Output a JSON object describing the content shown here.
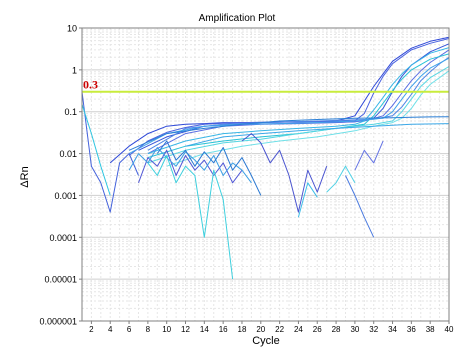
{
  "chart_data": {
    "type": "line",
    "title": "Amplification Plot",
    "xlabel": "Cycle",
    "ylabel": "ΔRn",
    "x_scale": "linear",
    "y_scale": "log",
    "xlim": [
      1,
      40
    ],
    "ylim": [
      1e-06,
      10
    ],
    "grid": true,
    "x_ticks": [
      2,
      4,
      6,
      8,
      10,
      12,
      14,
      16,
      18,
      20,
      22,
      24,
      26,
      28,
      30,
      32,
      34,
      36,
      38,
      40
    ],
    "y_ticks": [
      {
        "value": 1e-06,
        "label": "0.000001"
      },
      {
        "value": 1e-05,
        "label": "0.00001"
      },
      {
        "value": 0.0001,
        "label": "0.0001"
      },
      {
        "value": 0.001,
        "label": "0.001"
      },
      {
        "value": 0.01,
        "label": "0.01"
      },
      {
        "value": 0.1,
        "label": "0.1"
      },
      {
        "value": 1,
        "label": "1"
      },
      {
        "value": 10,
        "label": "10"
      }
    ],
    "threshold": {
      "value": 0.3,
      "label": "0.3",
      "color": "#c8ec3c",
      "label_color": "#cc0000"
    },
    "series": [
      {
        "color": "#2f49d8",
        "x": [
          4,
          6,
          8,
          10,
          12,
          14,
          16,
          18,
          20,
          22,
          24,
          26,
          28,
          30,
          32,
          34,
          36,
          38,
          40
        ],
        "y": [
          0.006,
          0.015,
          0.03,
          0.045,
          0.05,
          0.052,
          0.055,
          0.055,
          0.055,
          0.056,
          0.057,
          0.058,
          0.06,
          0.08,
          0.4,
          1.6,
          3.3,
          4.8,
          6.0
        ]
      },
      {
        "color": "#4a62e0",
        "x": [
          6,
          8,
          10,
          12,
          14,
          16,
          18,
          20,
          22,
          24,
          26,
          28,
          30,
          31,
          32,
          33,
          34,
          36,
          38,
          40
        ],
        "y": [
          0.009,
          0.02,
          0.032,
          0.042,
          0.05,
          0.053,
          0.055,
          0.056,
          0.057,
          0.058,
          0.058,
          0.059,
          0.061,
          0.09,
          0.28,
          0.7,
          1.4,
          3.0,
          4.3,
          5.6
        ]
      },
      {
        "color": "#3555d9",
        "x": [
          7,
          10,
          14,
          18,
          22,
          26,
          30,
          32,
          33,
          34,
          35,
          36,
          38,
          40
        ],
        "y": [
          0.012,
          0.025,
          0.045,
          0.05,
          0.052,
          0.054,
          0.057,
          0.07,
          0.12,
          0.3,
          0.7,
          1.3,
          2.7,
          4.2
        ]
      },
      {
        "color": "#5a6ee3",
        "x": [
          8,
          12,
          16,
          20,
          24,
          28,
          31,
          33,
          34,
          35,
          36,
          37,
          38,
          40
        ],
        "y": [
          0.01,
          0.03,
          0.045,
          0.05,
          0.052,
          0.055,
          0.06,
          0.08,
          0.14,
          0.28,
          0.55,
          0.95,
          1.5,
          3.0
        ]
      },
      {
        "color": "#4f86e6",
        "x": [
          8,
          12,
          16,
          20,
          24,
          28,
          32,
          34,
          35,
          36,
          37,
          38,
          39,
          40
        ],
        "y": [
          0.012,
          0.04,
          0.05,
          0.055,
          0.058,
          0.062,
          0.066,
          0.08,
          0.13,
          0.26,
          0.55,
          0.9,
          1.4,
          2.0
        ]
      },
      {
        "color": "#39b6e6",
        "x": [
          8,
          12,
          16,
          20,
          24,
          28,
          30,
          31,
          32,
          33,
          34,
          35,
          36,
          38,
          40
        ],
        "y": [
          0.01,
          0.02,
          0.03,
          0.035,
          0.04,
          0.045,
          0.05,
          0.06,
          0.11,
          0.22,
          0.45,
          0.8,
          1.3,
          2.5,
          3.4
        ]
      },
      {
        "color": "#29c2d6",
        "x": [
          8,
          12,
          16,
          20,
          24,
          28,
          31,
          32,
          33,
          34,
          35,
          36,
          38,
          40
        ],
        "y": [
          0.008,
          0.015,
          0.02,
          0.025,
          0.03,
          0.04,
          0.05,
          0.08,
          0.16,
          0.32,
          0.6,
          1.0,
          1.8,
          2.4
        ]
      },
      {
        "color": "#3fa3ea",
        "x": [
          6,
          10,
          14,
          18,
          22,
          26,
          30,
          33,
          34,
          35,
          36,
          37,
          38,
          40
        ],
        "y": [
          0.01,
          0.03,
          0.045,
          0.05,
          0.052,
          0.055,
          0.06,
          0.07,
          0.1,
          0.2,
          0.4,
          0.7,
          1.1,
          1.9
        ]
      },
      {
        "color": "#55d6e2",
        "x": [
          8,
          12,
          16,
          20,
          24,
          28,
          32,
          34,
          35,
          36,
          37,
          38,
          40
        ],
        "y": [
          0.006,
          0.012,
          0.018,
          0.022,
          0.03,
          0.04,
          0.05,
          0.06,
          0.1,
          0.2,
          0.4,
          0.65,
          1.2
        ]
      },
      {
        "color": "#6fe0e8",
        "x": [
          10,
          14,
          18,
          22,
          26,
          30,
          32,
          34,
          35,
          36,
          37,
          38,
          40
        ],
        "y": [
          0.005,
          0.01,
          0.015,
          0.02,
          0.025,
          0.035,
          0.045,
          0.055,
          0.07,
          0.12,
          0.25,
          0.45,
          0.95
        ]
      },
      {
        "color": "#2b7fd6",
        "x": [
          6,
          10,
          14,
          18,
          22,
          26,
          30,
          34,
          36,
          38,
          40
        ],
        "y": [
          0.012,
          0.03,
          0.04,
          0.05,
          0.06,
          0.065,
          0.07,
          0.072,
          0.074,
          0.075,
          0.076
        ]
      },
      {
        "color": "#3aa8e8",
        "x": [
          12,
          16,
          20,
          24,
          28,
          32,
          36,
          40
        ],
        "y": [
          0.015,
          0.025,
          0.03,
          0.035,
          0.04,
          0.045,
          0.05,
          0.052
        ]
      },
      {
        "color": "#4462dc",
        "x": [
          1,
          2,
          3,
          4,
          5,
          6,
          7
        ],
        "y": [
          0.3,
          0.005,
          0.002,
          0.0004,
          0.006,
          0.01,
          0.003
        ]
      },
      {
        "color": "#2fc6e0",
        "x": [
          1,
          2,
          3,
          4
        ],
        "y": [
          0.15,
          0.03,
          0.005,
          0.001
        ]
      },
      {
        "color": "#5157d6",
        "x": [
          7,
          8,
          9,
          10,
          11,
          12,
          13,
          14,
          15,
          16,
          17,
          18
        ],
        "y": [
          0.002,
          0.008,
          0.005,
          0.012,
          0.003,
          0.009,
          0.004,
          0.007,
          0.003,
          0.006,
          0.002,
          0.004
        ]
      },
      {
        "color": "#3c9fe4",
        "x": [
          6,
          7,
          8,
          9,
          10,
          11,
          12,
          13,
          14,
          15,
          16,
          17,
          18,
          19
        ],
        "y": [
          0.004,
          0.01,
          0.006,
          0.014,
          0.008,
          0.005,
          0.011,
          0.007,
          0.004,
          0.009,
          0.003,
          0.006,
          0.004,
          0.002
        ]
      },
      {
        "color": "#3ed0de",
        "x": [
          8,
          9,
          10,
          11,
          12,
          13,
          14,
          15,
          16,
          17
        ],
        "y": [
          0.006,
          0.003,
          0.009,
          0.002,
          0.005,
          0.003,
          0.0001,
          0.004,
          0.0008,
          1e-05
        ]
      },
      {
        "color": "#2a78d2",
        "x": [
          9,
          10,
          11,
          12,
          13,
          14,
          15,
          16,
          17,
          18,
          19,
          20
        ],
        "y": [
          0.01,
          0.02,
          0.007,
          0.012,
          0.005,
          0.011,
          0.006,
          0.014,
          0.004,
          0.008,
          0.003,
          0.001
        ]
      },
      {
        "color": "#4b55d0",
        "x": [
          18,
          19,
          20,
          21,
          22,
          23,
          24,
          25,
          26,
          27
        ],
        "y": [
          0.02,
          0.03,
          0.018,
          0.006,
          0.012,
          0.003,
          0.0004,
          0.004,
          0.0012,
          0.005
        ]
      },
      {
        "color": "#4a7ae0",
        "x": [
          29,
          30,
          31,
          32
        ],
        "y": [
          0.003,
          0.001,
          0.0003,
          0.0001
        ]
      },
      {
        "color": "#50d2e6",
        "x": [
          27,
          28,
          29,
          30
        ],
        "y": [
          0.0012,
          0.002,
          0.005,
          0.002
        ]
      },
      {
        "color": "#3dbde8",
        "x": [
          24,
          25,
          26
        ],
        "y": [
          0.0003,
          0.002,
          0.0009
        ]
      },
      {
        "color": "#6574e4",
        "x": [
          30,
          31,
          32,
          33
        ],
        "y": [
          0.004,
          0.012,
          0.006,
          0.02
        ]
      }
    ]
  }
}
